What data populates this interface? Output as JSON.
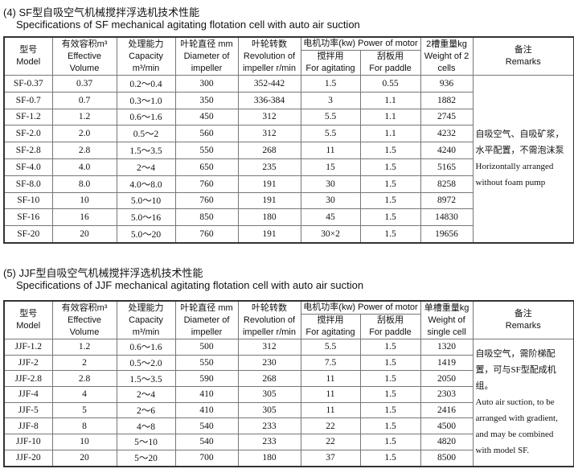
{
  "sf": {
    "title": "(4) SF型自吸空气机械搅拌浮选机技术性能",
    "subtitle": "Specifications of SF mechanical agitating flotation cell with auto air suction",
    "headers": {
      "model": [
        "型号",
        "Model"
      ],
      "volume": [
        "有效容积m³",
        "Effective",
        "Volume"
      ],
      "capacity": [
        "处理能力",
        "Capacity",
        "m³/min"
      ],
      "diameter": [
        "叶轮直径 mm",
        "Diameter of",
        "impeller"
      ],
      "revolution": [
        "叶轮转数",
        "Revolution of",
        "impeller r/min"
      ],
      "power": "电机功率(kw) Power of motor",
      "agitating": [
        "搅拌用",
        "For agitating"
      ],
      "paddle": [
        "刮板用",
        "For paddle"
      ],
      "weight": [
        "2槽重量kg",
        "Weight of 2",
        "cells"
      ],
      "remarks": [
        "备注",
        "Remarks"
      ]
    },
    "rows": [
      [
        "SF-0.37",
        "0.37",
        "0.2～0.4",
        "300",
        "352-442",
        "1.5",
        "0.55",
        "936"
      ],
      [
        "SF-0.7",
        "0.7",
        "0.3～1.0",
        "350",
        "336-384",
        "3",
        "1.1",
        "1882"
      ],
      [
        "SF-1.2",
        "1.2",
        "0.6～1.6",
        "450",
        "312",
        "5.5",
        "1.1",
        "2745"
      ],
      [
        "SF-2.0",
        "2.0",
        "0.5～2",
        "560",
        "312",
        "5.5",
        "1.1",
        "4232"
      ],
      [
        "SF-2.8",
        "2.8",
        "1.5～3.5",
        "550",
        "268",
        "11",
        "1.5",
        "4240"
      ],
      [
        "SF-4.0",
        "4.0",
        "2～4",
        "650",
        "235",
        "15",
        "1.5",
        "5165"
      ],
      [
        "SF-8.0",
        "8.0",
        "4.0～8.0",
        "760",
        "191",
        "30",
        "1.5",
        "8258"
      ],
      [
        "SF-10",
        "10",
        "5.0～10",
        "760",
        "191",
        "30",
        "1.5",
        "8972"
      ],
      [
        "SF-16",
        "16",
        "5.0～16",
        "850",
        "180",
        "45",
        "1.5",
        "14830"
      ],
      [
        "SF-20",
        "20",
        "5.0～20",
        "760",
        "191",
        "30×2",
        "1.5",
        "19656"
      ]
    ],
    "remarks": [
      "自吸空气、自吸矿浆，水平配置，不需泡沫泵",
      "Horizontally arranged without foam pump"
    ]
  },
  "jjf": {
    "title": "(5) JJF型自吸空气机械搅拌浮选机技术性能",
    "subtitle": "Specifications of JJF mechanical agitating flotation cell with auto air suction",
    "headers": {
      "model": [
        "型号",
        "Model"
      ],
      "volume": [
        "有效容积m³",
        "Effective",
        "Volume"
      ],
      "capacity": [
        "处理能力",
        "Capacity",
        "m³/min"
      ],
      "diameter": [
        "叶轮直径 mm",
        "Diameter of",
        "impeller"
      ],
      "revolution": [
        "叶轮转数",
        "Revolution of",
        "impeller r/min"
      ],
      "power": "电机功率(kw) Power of motor",
      "agitating": [
        "搅拌用",
        "For agitating"
      ],
      "paddle": [
        "刮板用",
        "For paddle"
      ],
      "weight": [
        "单槽重量kg",
        "Weight of",
        "single cell"
      ],
      "remarks": [
        "备注",
        "Remarks"
      ]
    },
    "rows": [
      [
        "JJF-1.2",
        "1.2",
        "0.6～1.6",
        "500",
        "312",
        "5.5",
        "1.5",
        "1320"
      ],
      [
        "JJF-2",
        "2",
        "0.5～2.0",
        "550",
        "230",
        "7.5",
        "1.5",
        "1419"
      ],
      [
        "JJF-2.8",
        "2.8",
        "1.5～3.5",
        "590",
        "268",
        "11",
        "1.5",
        "2050"
      ],
      [
        "JJF-4",
        "4",
        "2～4",
        "410",
        "305",
        "11",
        "1.5",
        "2303"
      ],
      [
        "JJF-5",
        "5",
        "2～6",
        "410",
        "305",
        "11",
        "1.5",
        "2416"
      ],
      [
        "JJF-8",
        "8",
        "4～8",
        "540",
        "233",
        "22",
        "1.5",
        "4500"
      ],
      [
        "JJF-10",
        "10",
        "5～10",
        "540",
        "233",
        "22",
        "1.5",
        "4820"
      ],
      [
        "JJF-20",
        "20",
        "5～20",
        "700",
        "180",
        "37",
        "1.5",
        "8500"
      ]
    ],
    "remarks": [
      "自吸空气，需阶梯配置，可与SF型配成机组。",
      "Auto air suction, to be arranged with gradient, and may be combined with model SF."
    ]
  }
}
